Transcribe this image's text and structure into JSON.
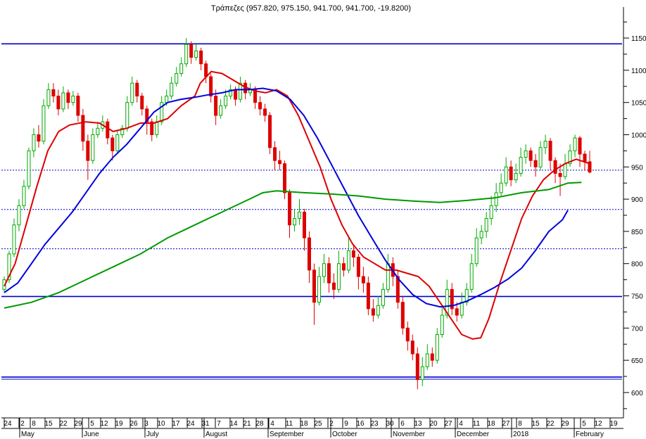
{
  "chart_data": {
    "type": "candlestick",
    "title": "Τράπεζες (957.820, 975.150, 941.700, 941.700, -19.8200)",
    "y_ticks": [
      600,
      650,
      700,
      750,
      800,
      850,
      900,
      950,
      1000,
      1050,
      1100,
      1150
    ],
    "ylim": [
      565,
      1185
    ],
    "grid": false,
    "day_labels": [
      "24",
      "2",
      "8",
      "15",
      "22",
      "29",
      "5",
      "12",
      "19",
      "26",
      "3",
      "10",
      "17",
      "24",
      "31",
      "7",
      "14",
      "21",
      "28",
      "4",
      "11",
      "18",
      "25",
      "2",
      "9",
      "16",
      "23",
      "30",
      "6",
      "13",
      "20",
      "27",
      "4",
      "11",
      "18",
      "27",
      "8",
      "15",
      "22",
      "29",
      "5",
      "12",
      "19"
    ],
    "month_labels": [
      "May",
      "June",
      "July",
      "August",
      "September",
      "October",
      "November",
      "December",
      "2018",
      "February"
    ],
    "horizontal_lines": [
      {
        "value": 1141,
        "color": "#0000cc",
        "style": "solid"
      },
      {
        "value": 945,
        "color": "#0000cc",
        "style": "dotted"
      },
      {
        "value": 884,
        "color": "#0000cc",
        "style": "dotted"
      },
      {
        "value": 823,
        "color": "#0000cc",
        "style": "dotted"
      },
      {
        "value": 749,
        "color": "#0000cc",
        "style": "solid"
      },
      {
        "value": 624,
        "color": "#0000cc",
        "style": "solid"
      }
    ],
    "series": [
      {
        "color": "#dd0000",
        "role": "short moving average",
        "points": [
          [
            0,
            765
          ],
          [
            4,
            800
          ],
          [
            8,
            860
          ],
          [
            12,
            920
          ],
          [
            16,
            975
          ],
          [
            20,
            1005
          ],
          [
            24,
            1015
          ],
          [
            30,
            1020
          ],
          [
            35,
            1018
          ],
          [
            40,
            1005
          ],
          [
            45,
            1010
          ],
          [
            50,
            1018
          ],
          [
            55,
            1018
          ],
          [
            60,
            1025
          ],
          [
            65,
            1045
          ],
          [
            70,
            1060
          ],
          [
            72,
            1080
          ],
          [
            76,
            1098
          ],
          [
            80,
            1095
          ],
          [
            84,
            1085
          ],
          [
            88,
            1075
          ],
          [
            92,
            1068
          ],
          [
            96,
            1065
          ],
          [
            100,
            1070
          ],
          [
            104,
            1060
          ],
          [
            108,
            1030
          ],
          [
            112,
            990
          ],
          [
            116,
            950
          ],
          [
            120,
            900
          ],
          [
            124,
            860
          ],
          [
            128,
            830
          ],
          [
            132,
            810
          ],
          [
            136,
            800
          ],
          [
            140,
            790
          ],
          [
            144,
            790
          ],
          [
            148,
            785
          ],
          [
            152,
            780
          ],
          [
            156,
            765
          ],
          [
            160,
            740
          ],
          [
            164,
            715
          ],
          [
            168,
            690
          ],
          [
            172,
            683
          ],
          [
            175,
            685
          ],
          [
            178,
            715
          ],
          [
            182,
            770
          ],
          [
            186,
            820
          ],
          [
            190,
            870
          ],
          [
            194,
            905
          ],
          [
            198,
            930
          ],
          [
            202,
            945
          ],
          [
            206,
            955
          ],
          [
            210,
            962
          ],
          [
            213,
            958
          ],
          [
            215,
            955
          ]
        ]
      },
      {
        "color": "#0000dd",
        "role": "medium moving average",
        "points": [
          [
            0,
            755
          ],
          [
            5,
            770
          ],
          [
            10,
            800
          ],
          [
            15,
            830
          ],
          [
            20,
            855
          ],
          [
            25,
            880
          ],
          [
            30,
            910
          ],
          [
            35,
            940
          ],
          [
            40,
            965
          ],
          [
            45,
            985
          ],
          [
            50,
            1010
          ],
          [
            55,
            1035
          ],
          [
            60,
            1050
          ],
          [
            65,
            1055
          ],
          [
            70,
            1058
          ],
          [
            75,
            1062
          ],
          [
            80,
            1065
          ],
          [
            85,
            1070
          ],
          [
            90,
            1070
          ],
          [
            95,
            1072
          ],
          [
            100,
            1068
          ],
          [
            105,
            1055
          ],
          [
            110,
            1030
          ],
          [
            115,
            995
          ],
          [
            120,
            955
          ],
          [
            125,
            915
          ],
          [
            130,
            875
          ],
          [
            135,
            840
          ],
          [
            140,
            805
          ],
          [
            145,
            775
          ],
          [
            150,
            752
          ],
          [
            155,
            738
          ],
          [
            160,
            733
          ],
          [
            165,
            735
          ],
          [
            170,
            742
          ],
          [
            175,
            752
          ],
          [
            180,
            763
          ],
          [
            185,
            776
          ],
          [
            190,
            793
          ],
          [
            195,
            820
          ],
          [
            200,
            850
          ],
          [
            205,
            868
          ],
          [
            207,
            883
          ]
        ]
      },
      {
        "color": "#009900",
        "role": "long moving average",
        "points": [
          [
            0,
            731
          ],
          [
            10,
            740
          ],
          [
            20,
            755
          ],
          [
            30,
            775
          ],
          [
            40,
            795
          ],
          [
            50,
            815
          ],
          [
            60,
            840
          ],
          [
            70,
            860
          ],
          [
            80,
            880
          ],
          [
            90,
            900
          ],
          [
            95,
            910
          ],
          [
            100,
            913
          ],
          [
            110,
            910
          ],
          [
            120,
            908
          ],
          [
            130,
            905
          ],
          [
            140,
            900
          ],
          [
            150,
            897
          ],
          [
            160,
            895
          ],
          [
            170,
            898
          ],
          [
            180,
            902
          ],
          [
            190,
            910
          ],
          [
            200,
            915
          ],
          [
            207,
            925
          ],
          [
            212,
            926
          ]
        ]
      }
    ],
    "candles": [
      [
        760,
        775,
        780,
        755
      ],
      [
        775,
        815,
        820,
        770
      ],
      [
        815,
        860,
        870,
        810
      ],
      [
        860,
        890,
        900,
        850
      ],
      [
        890,
        920,
        930,
        885
      ],
      [
        920,
        975,
        980,
        915
      ],
      [
        975,
        1000,
        1010,
        965
      ],
      [
        1000,
        990,
        1015,
        980
      ],
      [
        990,
        1045,
        1055,
        985
      ],
      [
        1045,
        1070,
        1080,
        1040
      ],
      [
        1070,
        1060,
        1080,
        1050
      ],
      [
        1060,
        1040,
        1070,
        1030
      ],
      [
        1040,
        1065,
        1075,
        1035
      ],
      [
        1065,
        1050,
        1070,
        1040
      ],
      [
        1050,
        1060,
        1068,
        1045
      ],
      [
        1060,
        1030,
        1065,
        1020
      ],
      [
        1030,
        990,
        1040,
        975
      ],
      [
        990,
        960,
        1000,
        930
      ],
      [
        960,
        1000,
        1010,
        955
      ],
      [
        1000,
        1010,
        1020,
        995
      ],
      [
        1010,
        1020,
        1030,
        1005
      ],
      [
        1020,
        995,
        1025,
        985
      ],
      [
        995,
        975,
        1000,
        960
      ],
      [
        975,
        1000,
        1008,
        970
      ],
      [
        1000,
        1010,
        1015,
        995
      ],
      [
        1010,
        1050,
        1060,
        1005
      ],
      [
        1050,
        1080,
        1090,
        1045
      ],
      [
        1080,
        1060,
        1085,
        1050
      ],
      [
        1060,
        1040,
        1065,
        1030
      ],
      [
        1040,
        1020,
        1045,
        1000
      ],
      [
        1020,
        1000,
        1025,
        990
      ],
      [
        1000,
        1020,
        1030,
        995
      ],
      [
        1020,
        1050,
        1060,
        1015
      ],
      [
        1050,
        1060,
        1070,
        1045
      ],
      [
        1060,
        1080,
        1090,
        1055
      ],
      [
        1080,
        1095,
        1105,
        1075
      ],
      [
        1095,
        1110,
        1120,
        1090
      ],
      [
        1110,
        1140,
        1150,
        1105
      ],
      [
        1140,
        1120,
        1145,
        1110
      ],
      [
        1120,
        1130,
        1140,
        1115
      ],
      [
        1130,
        1110,
        1135,
        1100
      ],
      [
        1110,
        1090,
        1115,
        1080
      ],
      [
        1090,
        1060,
        1095,
        1050
      ],
      [
        1060,
        1030,
        1070,
        1015
      ],
      [
        1030,
        1045,
        1055,
        1025
      ],
      [
        1045,
        1060,
        1070,
        1040
      ],
      [
        1060,
        1070,
        1078,
        1055
      ],
      [
        1070,
        1055,
        1075,
        1045
      ],
      [
        1055,
        1080,
        1090,
        1050
      ],
      [
        1080,
        1065,
        1085,
        1055
      ],
      [
        1065,
        1070,
        1080,
        1060
      ],
      [
        1070,
        1050,
        1075,
        1040
      ],
      [
        1050,
        1040,
        1060,
        1030
      ],
      [
        1040,
        1030,
        1048,
        1020
      ],
      [
        1030,
        980,
        1035,
        970
      ],
      [
        980,
        960,
        990,
        945
      ],
      [
        960,
        955,
        975,
        945
      ],
      [
        955,
        910,
        960,
        900
      ],
      [
        910,
        860,
        915,
        840
      ],
      [
        860,
        870,
        885,
        850
      ],
      [
        870,
        880,
        900,
        860
      ],
      [
        880,
        840,
        885,
        820
      ],
      [
        840,
        790,
        850,
        770
      ],
      [
        790,
        740,
        800,
        705
      ],
      [
        740,
        780,
        795,
        735
      ],
      [
        780,
        800,
        815,
        770
      ],
      [
        800,
        770,
        810,
        755
      ],
      [
        770,
        760,
        785,
        745
      ],
      [
        760,
        800,
        820,
        755
      ],
      [
        800,
        790,
        810,
        780
      ],
      [
        790,
        820,
        840,
        785
      ],
      [
        820,
        810,
        830,
        795
      ],
      [
        810,
        780,
        815,
        760
      ],
      [
        780,
        770,
        795,
        755
      ],
      [
        770,
        730,
        780,
        720
      ],
      [
        730,
        720,
        745,
        710
      ],
      [
        720,
        735,
        750,
        715
      ],
      [
        735,
        760,
        770,
        730
      ],
      [
        760,
        800,
        815,
        755
      ],
      [
        800,
        780,
        810,
        765
      ],
      [
        780,
        740,
        790,
        730
      ],
      [
        740,
        700,
        750,
        690
      ],
      [
        700,
        680,
        710,
        665
      ],
      [
        680,
        660,
        690,
        650
      ],
      [
        660,
        620,
        670,
        605
      ],
      [
        620,
        640,
        655,
        610
      ],
      [
        640,
        660,
        675,
        635
      ],
      [
        660,
        650,
        670,
        640
      ],
      [
        650,
        690,
        700,
        645
      ],
      [
        690,
        720,
        735,
        685
      ],
      [
        720,
        760,
        775,
        715
      ],
      [
        760,
        730,
        770,
        720
      ],
      [
        730,
        720,
        740,
        710
      ],
      [
        720,
        740,
        755,
        715
      ],
      [
        740,
        760,
        770,
        735
      ],
      [
        760,
        800,
        815,
        755
      ],
      [
        800,
        840,
        855,
        795
      ],
      [
        840,
        850,
        860,
        830
      ],
      [
        850,
        870,
        880,
        840
      ],
      [
        870,
        890,
        905,
        860
      ],
      [
        890,
        910,
        925,
        880
      ],
      [
        910,
        925,
        940,
        905
      ],
      [
        925,
        950,
        965,
        920
      ],
      [
        950,
        930,
        960,
        920
      ],
      [
        930,
        940,
        955,
        925
      ],
      [
        940,
        965,
        980,
        935
      ],
      [
        965,
        975,
        985,
        955
      ],
      [
        975,
        960,
        980,
        950
      ],
      [
        960,
        950,
        970,
        935
      ],
      [
        950,
        980,
        990,
        945
      ],
      [
        980,
        990,
        1000,
        970
      ],
      [
        990,
        960,
        995,
        945
      ],
      [
        960,
        940,
        965,
        925
      ],
      [
        940,
        935,
        955,
        905
      ],
      [
        935,
        955,
        970,
        930
      ],
      [
        955,
        975,
        985,
        950
      ],
      [
        975,
        995,
        1000,
        965
      ],
      [
        995,
        970,
        998,
        950
      ],
      [
        970,
        958,
        975,
        945
      ],
      [
        958,
        942,
        975,
        940
      ]
    ]
  }
}
